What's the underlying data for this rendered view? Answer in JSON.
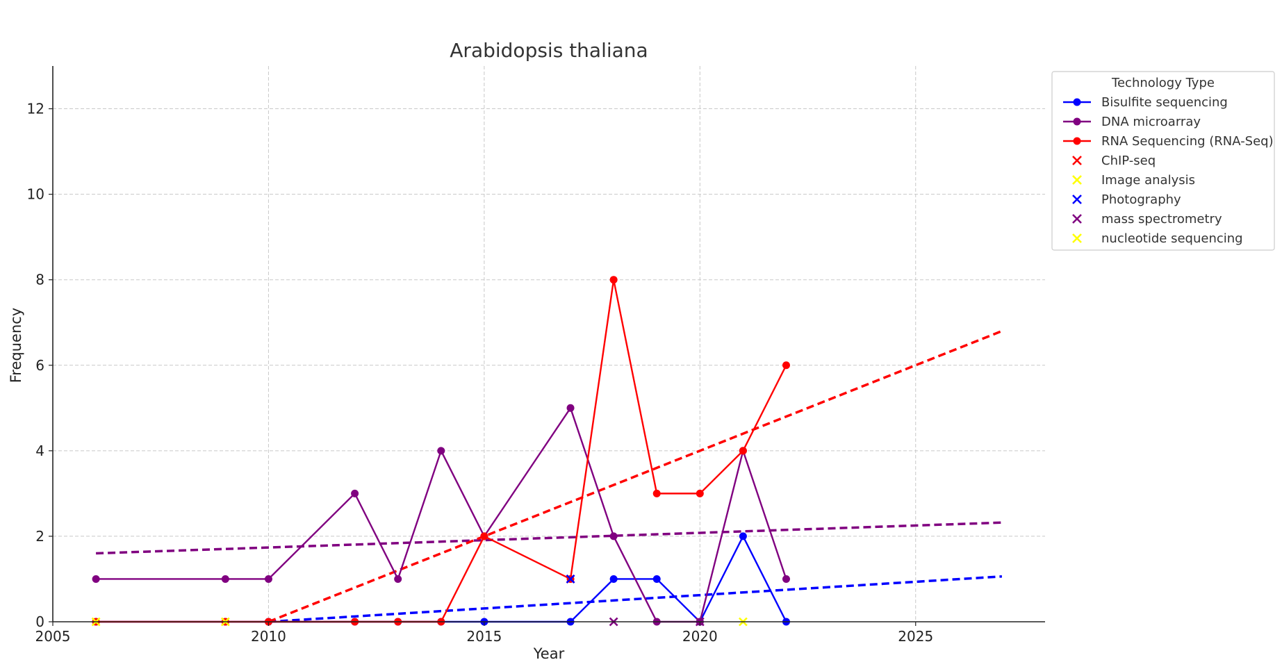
{
  "chart_data": {
    "type": "line",
    "title": "Arabidopsis thaliana",
    "xlabel": "Year",
    "ylabel": "Frequency",
    "xlim": [
      2005,
      2028
    ],
    "ylim": [
      0,
      13
    ],
    "xticks": [
      2005,
      2010,
      2015,
      2020,
      2025
    ],
    "yticks": [
      0,
      2,
      4,
      6,
      8,
      10,
      12
    ],
    "grid": true,
    "legend_title": "Technology Type",
    "legend_position": "outside-top-right",
    "line_series": [
      {
        "name": "Bisulfite sequencing",
        "color": "#0000ff",
        "x": [
          2006,
          2009,
          2010,
          2012,
          2013,
          2014,
          2015,
          2017,
          2018,
          2019,
          2020,
          2021,
          2022
        ],
        "y": [
          0,
          0,
          0,
          0,
          0,
          0,
          0,
          0,
          1,
          1,
          0,
          2,
          0
        ]
      },
      {
        "name": "DNA microarray",
        "color": "#800080",
        "x": [
          2006,
          2009,
          2010,
          2012,
          2013,
          2014,
          2015,
          2017,
          2018,
          2019,
          2020,
          2021,
          2022
        ],
        "y": [
          1,
          1,
          1,
          3,
          1,
          4,
          2,
          5,
          2,
          0,
          0,
          4,
          1
        ]
      },
      {
        "name": "RNA Sequencing (RNA-Seq)",
        "color": "#ff0000",
        "x": [
          2006,
          2009,
          2010,
          2012,
          2013,
          2014,
          2015,
          2017,
          2018,
          2019,
          2020,
          2021,
          2022
        ],
        "y": [
          0,
          0,
          0,
          0,
          0,
          0,
          2,
          1,
          8,
          3,
          3,
          4,
          6
        ]
      }
    ],
    "scatter_series": [
      {
        "name": "ChIP-seq",
        "color": "#ff0000",
        "x": [
          2017
        ],
        "y": [
          1
        ]
      },
      {
        "name": "Image analysis",
        "color": "#ffff00",
        "x": [
          2006,
          2009
        ],
        "y": [
          0,
          0
        ]
      },
      {
        "name": "Photography",
        "color": "#0000ff",
        "x": [
          2017
        ],
        "y": [
          1
        ]
      },
      {
        "name": "mass spectrometry",
        "color": "#800080",
        "x": [
          2018,
          2020
        ],
        "y": [
          0,
          0
        ]
      },
      {
        "name": "nucleotide sequencing",
        "color": "#ffff00",
        "x": [
          2021
        ],
        "y": [
          0
        ]
      }
    ],
    "trend_lines": [
      {
        "color": "#800080",
        "x": [
          2006,
          2027
        ],
        "y": [
          1.6,
          2.32
        ]
      },
      {
        "color": "#0000ff",
        "x": [
          2010,
          2027
        ],
        "y": [
          0,
          1.06
        ]
      },
      {
        "color": "#ff0000",
        "x": [
          2010,
          2027
        ],
        "y": [
          0,
          6.8
        ]
      }
    ]
  }
}
